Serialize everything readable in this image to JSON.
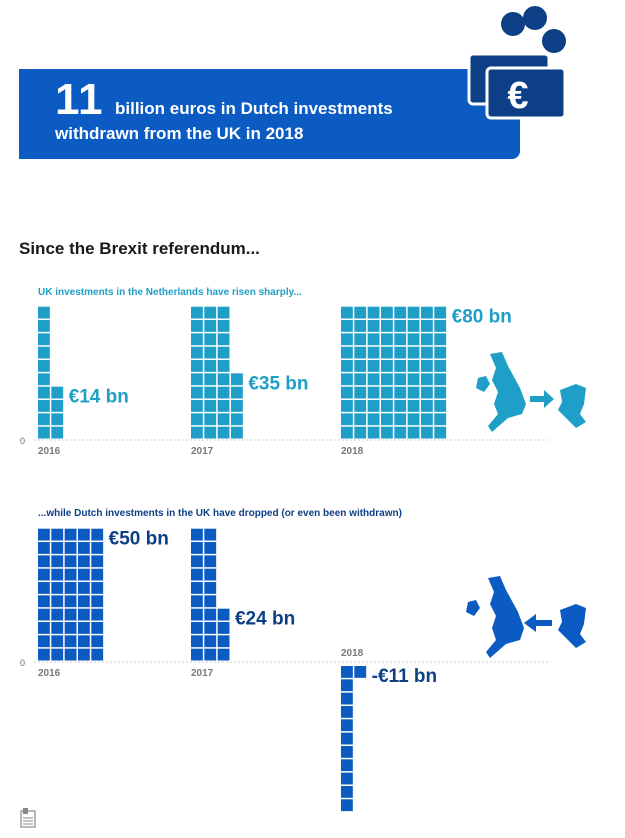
{
  "banner": {
    "big_number": "11",
    "line1": "billion euros in Dutch investments",
    "line2": "withdrawn from the UK in 2018",
    "currency_icon": "euro-banknote-coins-icon"
  },
  "heading": "Since the Brexit referendum...",
  "colors": {
    "banner": "#0b5bc2",
    "panel1": "#1f9fc8",
    "panel2": "#0b5bc2"
  },
  "chart_data": [
    {
      "type": "bar",
      "title": "UK investments in the Netherlands have risen sharply...",
      "categories": [
        "2016",
        "2017",
        "2018"
      ],
      "values": [
        14,
        35,
        80
      ],
      "value_labels": [
        "€14 bn",
        "€35 bn",
        "€80 bn"
      ],
      "zero_label": "0",
      "unit": "billion euros",
      "icon": "uk-to-netherlands-map-icon"
    },
    {
      "type": "bar",
      "title": "...while Dutch investments in the UK have dropped (or even been withdrawn)",
      "categories": [
        "2016",
        "2017",
        "2018"
      ],
      "values": [
        50,
        24,
        -11
      ],
      "value_labels": [
        "€50 bn",
        "€24 bn",
        "-€11 bn"
      ],
      "zero_label": "0",
      "unit": "billion euros",
      "icon": "netherlands-to-uk-map-icon"
    }
  ]
}
